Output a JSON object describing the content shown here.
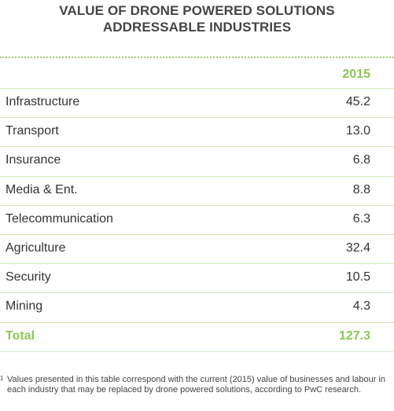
{
  "title": {
    "line1": "VALUE OF DRONE POWERED SOLUTIONS",
    "line2": "ADDRESSABLE INDUSTRIES"
  },
  "chart_data": {
    "type": "table",
    "columns": [
      "2015"
    ],
    "rows": [
      {
        "label": "Infrastructure",
        "value": "45.2"
      },
      {
        "label": "Transport",
        "value": "13.0"
      },
      {
        "label": "Insurance",
        "value": "6.8"
      },
      {
        "label": "Media & Ent.",
        "value": "8.8"
      },
      {
        "label": "Telecommunication",
        "value": "6.3"
      },
      {
        "label": "Agriculture",
        "value": "32.4"
      },
      {
        "label": "Security",
        "value": "10.5"
      },
      {
        "label": "Mining",
        "value": "4.3"
      }
    ],
    "total": {
      "label": "Total",
      "value": "127.3"
    }
  },
  "colors": {
    "accent": "#8dc653",
    "title": "#454545",
    "rule": "#cfe8b8"
  },
  "footnote": {
    "mark": "1",
    "text": "Values presented in this table correspond with the current (2015) value of businesses and labour in each industry that may be replaced by drone powered solutions, according to PwC research."
  }
}
